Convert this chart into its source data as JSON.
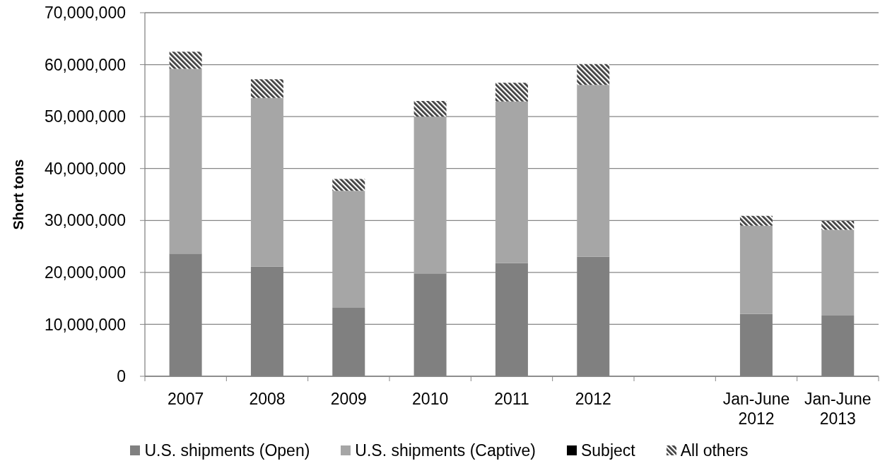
{
  "chart_data": {
    "type": "bar",
    "stacked": true,
    "ylabel": "Short tons",
    "categories": [
      "2007",
      "2008",
      "2009",
      "2010",
      "2011",
      "2012",
      null,
      "Jan-June 2012",
      "Jan-June 2013"
    ],
    "series": [
      {
        "name": "U.S. shipments (Open)",
        "color": "#808080",
        "values": [
          23600000,
          21100000,
          13200000,
          19800000,
          21800000,
          23000000,
          null,
          12000000,
          11700000
        ]
      },
      {
        "name": "U.S. shipments (Captive)",
        "color": "#a6a6a6",
        "values": [
          35600000,
          32500000,
          22500000,
          30200000,
          31100000,
          33100000,
          null,
          17000000,
          16500000
        ]
      },
      {
        "name": "Subject",
        "color": "#000000",
        "values": [
          0,
          0,
          0,
          0,
          0,
          0,
          null,
          0,
          0
        ]
      },
      {
        "name": "All others",
        "color": "#404040",
        "values": [
          3300000,
          3600000,
          2300000,
          3000000,
          3600000,
          4000000,
          null,
          1900000,
          1700000
        ]
      }
    ],
    "ylim": [
      0,
      70000000
    ],
    "yticks": [
      0,
      {
        "value": 10000000,
        "label": "10,000,000"
      },
      {
        "value": 20000000,
        "label": "20,000,000"
      },
      {
        "value": 30000000,
        "label": "30,000,000"
      },
      {
        "value": 40000000,
        "label": "40,000,000"
      },
      {
        "value": 50000000,
        "label": "50,000,000"
      },
      {
        "value": 60000000,
        "label": "60,000,000"
      },
      {
        "value": 70000000,
        "label": "70,000,000"
      }
    ],
    "grid": "y",
    "legend": "bottom"
  }
}
